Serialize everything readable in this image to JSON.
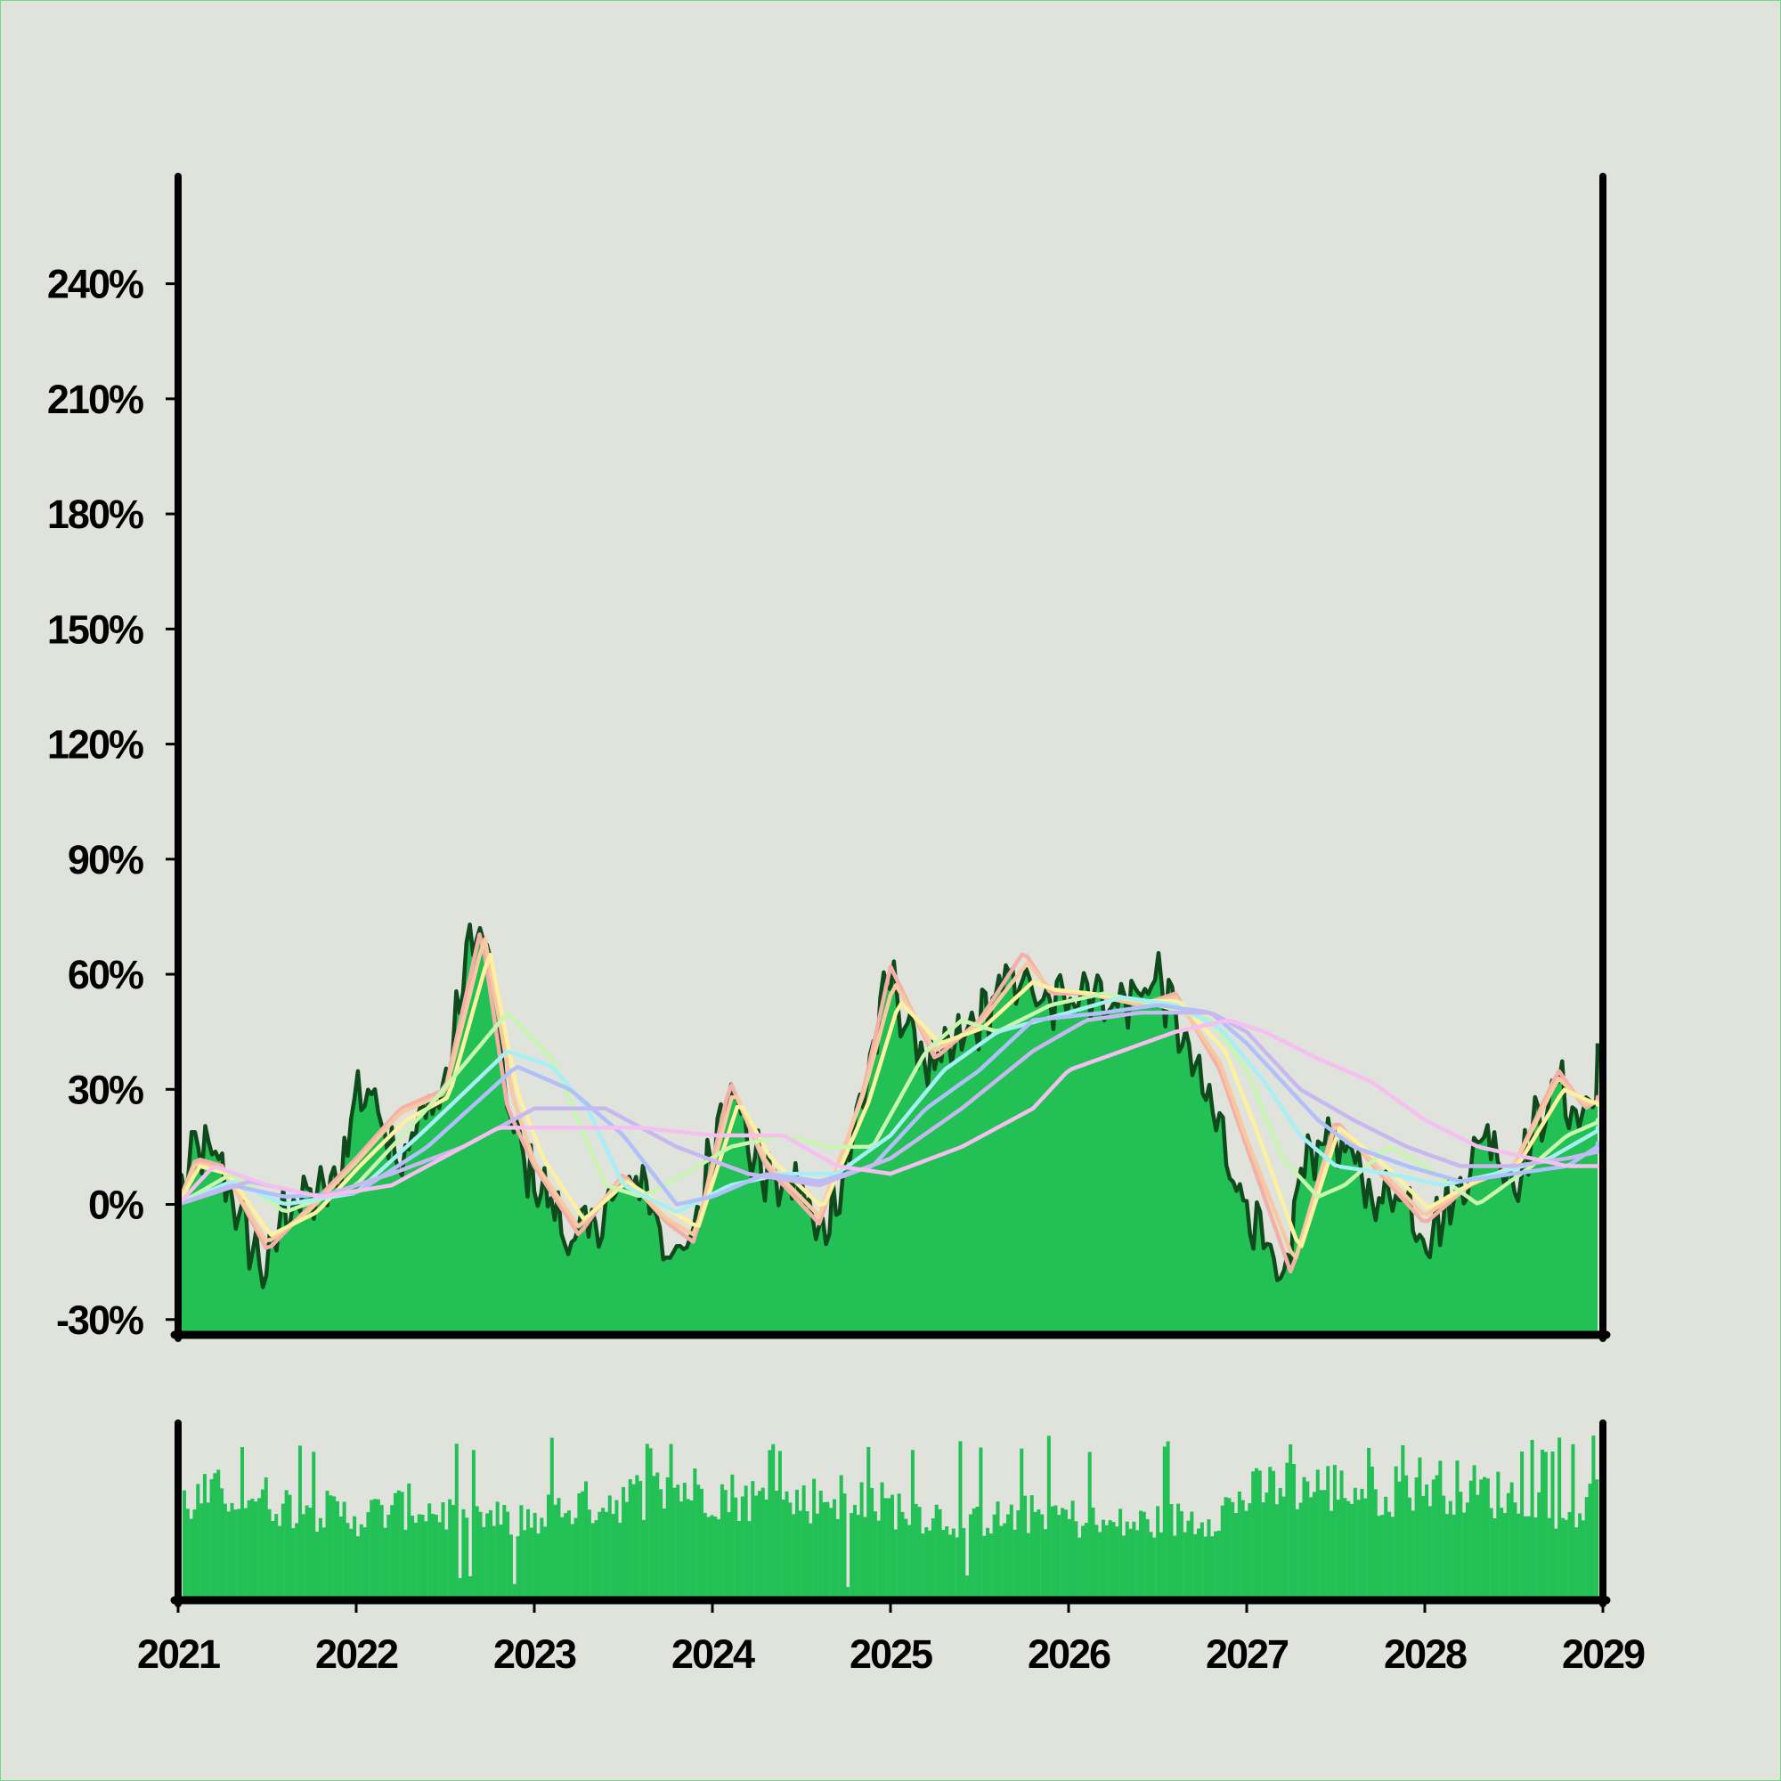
{
  "chart_data": [
    {
      "type": "area",
      "title": "",
      "xlabel": "",
      "ylabel": "",
      "xlim": [
        2021,
        2029
      ],
      "ylim": [
        -34,
        268
      ],
      "y_ticks": [
        -30,
        0,
        30,
        60,
        90,
        120,
        150,
        180,
        210,
        240
      ],
      "y_tick_labels": [
        "-30%",
        "0%",
        "30%",
        "60%",
        "90%",
        "120%",
        "150%",
        "180%",
        "210%",
        "240%"
      ],
      "x_ticks": [
        2021,
        2022,
        2023,
        2024,
        2025,
        2026,
        2027,
        2028,
        2029
      ],
      "x_tick_labels": [
        "2021",
        "2022",
        "2023",
        "2024",
        "2025",
        "2026",
        "2027",
        "2028",
        "2029"
      ],
      "grid": false,
      "legend": "none",
      "area_fill_color": "#22c055",
      "area_edge_color": "#0e4a1c",
      "series": [
        {
          "role": "price",
          "x": [
            2021.0,
            2021.1,
            2021.25,
            2021.35,
            2021.5,
            2021.6,
            2021.75,
            2021.9,
            2022.0,
            2022.1,
            2022.25,
            2022.4,
            2022.5,
            2022.65,
            2022.75,
            2022.85,
            2022.95,
            2023.1,
            2023.2,
            2023.35,
            2023.45,
            2023.6,
            2023.75,
            2023.85,
            2023.95,
            2024.1,
            2024.2,
            2024.35,
            2024.5,
            2024.6,
            2024.75,
            2024.85,
            2025.0,
            2025.1,
            2025.25,
            2025.35,
            2025.5,
            2025.6,
            2025.75,
            2025.85,
            2026.0,
            2026.1,
            2026.25,
            2026.4,
            2026.5,
            2026.6,
            2026.75,
            2026.85,
            2026.95,
            2027.05,
            2027.2,
            2027.3,
            2027.45,
            2027.6,
            2027.75,
            2027.85,
            2028.0,
            2028.15,
            2028.25,
            2028.35,
            2028.5,
            2028.6,
            2028.75,
            2028.85,
            2028.95,
            2029.0
          ],
          "values": [
            0,
            15,
            10,
            -5,
            -18,
            0,
            2,
            5,
            30,
            28,
            12,
            25,
            30,
            72,
            65,
            25,
            10,
            0,
            -10,
            -5,
            2,
            8,
            -12,
            -15,
            5,
            35,
            15,
            5,
            5,
            -10,
            10,
            30,
            60,
            45,
            35,
            40,
            48,
            55,
            60,
            50,
            55,
            58,
            52,
            55,
            60,
            48,
            30,
            20,
            5,
            -5,
            -25,
            8,
            20,
            10,
            0,
            5,
            -8,
            0,
            10,
            20,
            5,
            18,
            32,
            22,
            28,
            42
          ]
        },
        {
          "role": "moving-average",
          "color": "#f3b0a8",
          "x": [
            2021.0,
            2021.1,
            2021.25,
            2021.5,
            2021.75,
            2022.0,
            2022.25,
            2022.5,
            2022.7,
            2022.85,
            2023.0,
            2023.25,
            2023.5,
            2023.75,
            2023.9,
            2024.1,
            2024.3,
            2024.6,
            2024.85,
            2025.0,
            2025.25,
            2025.5,
            2025.75,
            2025.9,
            2026.1,
            2026.4,
            2026.6,
            2026.85,
            2027.0,
            2027.25,
            2027.5,
            2027.75,
            2028.0,
            2028.25,
            2028.5,
            2028.75,
            2028.9,
            2029.0
          ],
          "values": [
            0,
            12,
            10,
            -12,
            0,
            12,
            25,
            30,
            72,
            25,
            10,
            -8,
            8,
            -5,
            -10,
            32,
            10,
            -5,
            30,
            62,
            38,
            48,
            66,
            55,
            55,
            52,
            55,
            35,
            15,
            -18,
            22,
            8,
            -5,
            5,
            10,
            35,
            25,
            28
          ]
        },
        {
          "role": "moving-average",
          "color": "#f8c8a0",
          "x": [
            2021.0,
            2021.1,
            2021.25,
            2021.5,
            2021.75,
            2022.0,
            2022.25,
            2022.5,
            2022.72,
            2022.88,
            2023.0,
            2023.25,
            2023.5,
            2023.75,
            2023.9,
            2024.12,
            2024.3,
            2024.6,
            2024.85,
            2025.02,
            2025.25,
            2025.5,
            2025.77,
            2025.9,
            2026.1,
            2026.4,
            2026.6,
            2026.85,
            2027.0,
            2027.27,
            2027.5,
            2027.75,
            2028.0,
            2028.25,
            2028.5,
            2028.75,
            2028.9,
            2029.0
          ],
          "values": [
            0,
            11,
            9,
            -10,
            -1,
            11,
            24,
            29,
            70,
            28,
            11,
            -6,
            7,
            -4,
            -8,
            30,
            11,
            -3,
            29,
            58,
            40,
            47,
            63,
            56,
            55,
            52,
            54,
            37,
            17,
            -15,
            21,
            9,
            -3,
            5,
            10,
            33,
            26,
            27
          ]
        },
        {
          "role": "moving-average",
          "color": "#fdf0a0",
          "x": [
            2021.0,
            2021.12,
            2021.28,
            2021.52,
            2021.78,
            2022.02,
            2022.28,
            2022.52,
            2022.75,
            2022.9,
            2023.05,
            2023.28,
            2023.52,
            2023.78,
            2023.92,
            2024.15,
            2024.33,
            2024.62,
            2024.88,
            2025.05,
            2025.28,
            2025.52,
            2025.8,
            2025.92,
            2026.12,
            2026.42,
            2026.62,
            2026.88,
            2027.05,
            2027.3,
            2027.52,
            2027.78,
            2028.02,
            2028.28,
            2028.52,
            2028.78,
            2028.92,
            2029.0
          ],
          "values": [
            0,
            10,
            8,
            -8,
            -2,
            10,
            22,
            28,
            66,
            30,
            12,
            -4,
            6,
            -2,
            -6,
            27,
            12,
            -1,
            27,
            53,
            42,
            46,
            58,
            56,
            55,
            53,
            53,
            40,
            20,
            -12,
            20,
            10,
            -1,
            6,
            10,
            30,
            27,
            26
          ]
        },
        {
          "role": "moving-average",
          "color": "#c8f5b0",
          "x": [
            2021.0,
            2021.3,
            2021.6,
            2022.0,
            2022.4,
            2022.85,
            2023.1,
            2023.4,
            2023.6,
            2023.85,
            2024.1,
            2024.4,
            2024.65,
            2024.9,
            2025.2,
            2025.4,
            2025.6,
            2025.9,
            2026.2,
            2026.5,
            2026.8,
            2027.0,
            2027.2,
            2027.4,
            2027.55,
            2027.8,
            2028.0,
            2028.3,
            2028.6,
            2028.8,
            2029.0
          ],
          "values": [
            0,
            8,
            -2,
            5,
            25,
            50,
            38,
            5,
            2,
            8,
            15,
            18,
            15,
            15,
            40,
            48,
            45,
            52,
            55,
            52,
            48,
            35,
            12,
            2,
            5,
            15,
            10,
            0,
            10,
            18,
            22
          ]
        },
        {
          "role": "moving-average",
          "color": "#a8eef5",
          "x": [
            2021.0,
            2021.3,
            2021.6,
            2022.0,
            2022.4,
            2022.85,
            2023.1,
            2023.3,
            2023.5,
            2023.8,
            2024.1,
            2024.4,
            2024.7,
            2025.0,
            2025.3,
            2025.6,
            2026.0,
            2026.3,
            2026.6,
            2026.85,
            2027.1,
            2027.3,
            2027.5,
            2027.8,
            2028.1,
            2028.4,
            2028.7,
            2029.0
          ],
          "values": [
            0,
            6,
            0,
            3,
            20,
            40,
            36,
            25,
            5,
            -2,
            5,
            8,
            8,
            18,
            35,
            45,
            50,
            54,
            52,
            46,
            32,
            18,
            10,
            8,
            5,
            8,
            12,
            20
          ]
        },
        {
          "role": "moving-average",
          "color": "#b0c0f8",
          "x": [
            2021.0,
            2021.3,
            2021.6,
            2022.0,
            2022.4,
            2022.9,
            2023.2,
            2023.5,
            2023.8,
            2024.0,
            2024.3,
            2024.6,
            2024.9,
            2025.2,
            2025.5,
            2025.8,
            2026.2,
            2026.5,
            2026.8,
            2027.0,
            2027.2,
            2027.4,
            2027.6,
            2027.9,
            2028.2,
            2028.5,
            2028.8,
            2029.0
          ],
          "values": [
            0,
            5,
            2,
            3,
            15,
            36,
            30,
            18,
            0,
            2,
            8,
            6,
            10,
            25,
            35,
            48,
            50,
            52,
            50,
            42,
            32,
            22,
            15,
            10,
            6,
            8,
            10,
            16
          ]
        },
        {
          "role": "moving-average",
          "color": "#c8b8f0",
          "x": [
            2021.0,
            2021.4,
            2021.8,
            2022.2,
            2022.6,
            2023.0,
            2023.4,
            2023.8,
            2024.2,
            2024.6,
            2025.0,
            2025.4,
            2025.8,
            2026.1,
            2026.4,
            2026.8,
            2027.0,
            2027.3,
            2027.6,
            2027.9,
            2028.2,
            2028.5,
            2028.8,
            2029.0
          ],
          "values": [
            0,
            6,
            2,
            8,
            15,
            25,
            25,
            15,
            8,
            5,
            12,
            25,
            40,
            48,
            50,
            50,
            45,
            30,
            22,
            15,
            10,
            10,
            12,
            14
          ]
        },
        {
          "role": "moving-average",
          "color": "#f5c0f0",
          "x": [
            2021.0,
            2021.2,
            2021.5,
            2021.8,
            2022.2,
            2022.6,
            2022.8,
            2023.2,
            2023.6,
            2024.0,
            2024.4,
            2024.7,
            2025.0,
            2025.4,
            2025.8,
            2026.0,
            2026.3,
            2026.6,
            2026.9,
            2027.1,
            2027.4,
            2027.7,
            2028.0,
            2028.3,
            2028.6,
            2028.8,
            2029.0
          ],
          "values": [
            0,
            10,
            5,
            2,
            5,
            15,
            20,
            20,
            20,
            18,
            18,
            10,
            8,
            15,
            25,
            35,
            40,
            45,
            48,
            45,
            38,
            32,
            22,
            15,
            12,
            10,
            10
          ]
        }
      ]
    },
    {
      "type": "bar",
      "title": "",
      "xlabel": "",
      "ylabel": "",
      "xlim": [
        2021,
        2029
      ],
      "ylim": [
        0,
        1
      ],
      "grid": false,
      "legend": "none",
      "color": "#22c055",
      "bars_per_year": 52,
      "bar_count": 416,
      "envelope_x": [
        2021.0,
        2021.3,
        2021.6,
        2022.0,
        2022.3,
        2022.6,
        2022.9,
        2023.2,
        2023.5,
        2023.8,
        2024.1,
        2024.4,
        2024.7,
        2025.0,
        2025.3,
        2025.6,
        2025.9,
        2026.2,
        2026.5,
        2026.8,
        2027.0,
        2027.2,
        2027.5,
        2027.8,
        2028.0,
        2028.3,
        2028.6,
        2028.8,
        2029.0
      ],
      "envelope_values": [
        0.72,
        0.82,
        0.7,
        0.62,
        0.7,
        0.62,
        0.58,
        0.7,
        0.76,
        0.84,
        0.78,
        0.72,
        0.78,
        0.7,
        0.62,
        0.6,
        0.66,
        0.55,
        0.58,
        0.62,
        0.76,
        0.86,
        0.84,
        0.8,
        0.88,
        0.82,
        0.75,
        0.6,
        0.78
      ]
    }
  ]
}
